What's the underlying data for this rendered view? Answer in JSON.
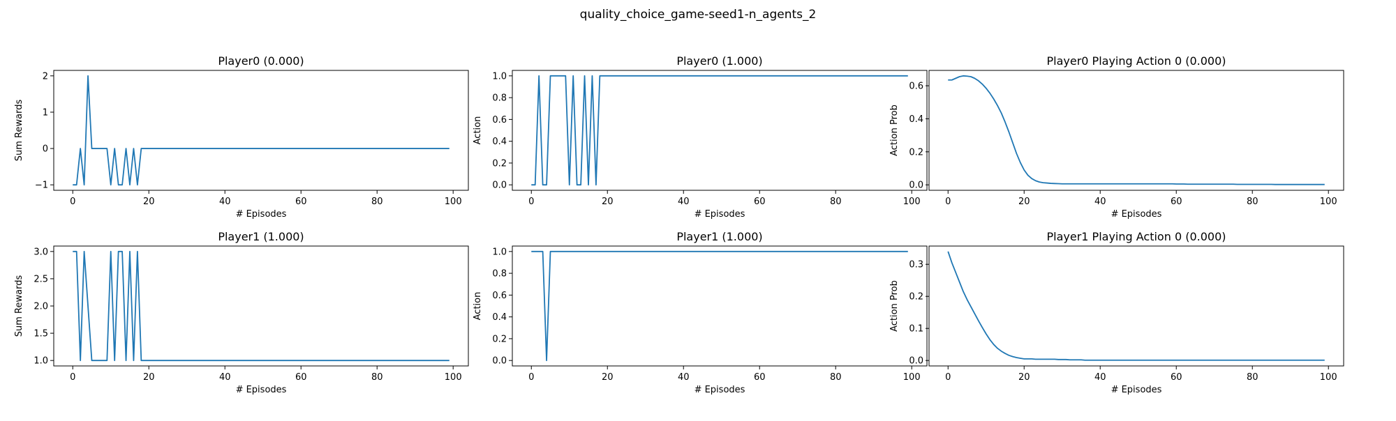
{
  "figure": {
    "suptitle": "quality_choice_game-seed1-n_agents_2",
    "line_color": "#1f77b4"
  },
  "chart_data": [
    {
      "type": "line",
      "title": "Player0 (0.000)",
      "xlabel": "# Episodes",
      "ylabel": "Sum Rewards",
      "xlim": [
        -5,
        104
      ],
      "ylim": [
        -1.15,
        2.15
      ],
      "xticks": [
        0,
        20,
        40,
        60,
        80,
        100
      ],
      "yticks": [
        -1,
        0,
        1,
        2
      ],
      "ytick_labels": [
        "−1",
        "0",
        "1",
        "2"
      ],
      "series": [
        {
          "values": [
            -1,
            -1,
            0,
            -1,
            2,
            0,
            0,
            0,
            0,
            0,
            -1,
            0,
            -1,
            -1,
            0,
            -1,
            0,
            -1,
            0,
            0,
            0,
            0,
            0,
            0,
            0,
            0,
            0,
            0,
            0,
            0,
            0,
            0,
            0,
            0,
            0,
            0,
            0,
            0,
            0,
            0,
            0,
            0,
            0,
            0,
            0,
            0,
            0,
            0,
            0,
            0,
            0,
            0,
            0,
            0,
            0,
            0,
            0,
            0,
            0,
            0,
            0,
            0,
            0,
            0,
            0,
            0,
            0,
            0,
            0,
            0,
            0,
            0,
            0,
            0,
            0,
            0,
            0,
            0,
            0,
            0,
            0,
            0,
            0,
            0,
            0,
            0,
            0,
            0,
            0,
            0,
            0,
            0,
            0,
            0,
            0,
            0,
            0,
            0,
            0,
            0
          ]
        }
      ]
    },
    {
      "type": "line",
      "title": "Player0 (1.000)",
      "xlabel": "# Episodes",
      "ylabel": "Action",
      "xlim": [
        -5,
        104
      ],
      "ylim": [
        -0.05,
        1.05
      ],
      "xticks": [
        0,
        20,
        40,
        60,
        80,
        100
      ],
      "yticks": [
        0,
        0.2,
        0.4,
        0.6,
        0.8,
        1.0
      ],
      "ytick_labels": [
        "0.0",
        "0.2",
        "0.4",
        "0.6",
        "0.8",
        "1.0"
      ],
      "series": [
        {
          "values": [
            0,
            0,
            1,
            0,
            0,
            1,
            1,
            1,
            1,
            1,
            0,
            1,
            0,
            0,
            1,
            0,
            1,
            0,
            1,
            1,
            1,
            1,
            1,
            1,
            1,
            1,
            1,
            1,
            1,
            1,
            1,
            1,
            1,
            1,
            1,
            1,
            1,
            1,
            1,
            1,
            1,
            1,
            1,
            1,
            1,
            1,
            1,
            1,
            1,
            1,
            1,
            1,
            1,
            1,
            1,
            1,
            1,
            1,
            1,
            1,
            1,
            1,
            1,
            1,
            1,
            1,
            1,
            1,
            1,
            1,
            1,
            1,
            1,
            1,
            1,
            1,
            1,
            1,
            1,
            1,
            1,
            1,
            1,
            1,
            1,
            1,
            1,
            1,
            1,
            1,
            1,
            1,
            1,
            1,
            1,
            1,
            1,
            1,
            1,
            1
          ]
        }
      ]
    },
    {
      "type": "line",
      "title": "Player0 Playing Action 0 (0.000)",
      "xlabel": "# Episodes",
      "ylabel": "Action Prob",
      "xlim": [
        -5,
        104
      ],
      "ylim": [
        -0.033,
        0.693
      ],
      "xticks": [
        0,
        20,
        40,
        60,
        80,
        100
      ],
      "yticks": [
        0,
        0.2,
        0.4,
        0.6
      ],
      "ytick_labels": [
        "0.0",
        "0.2",
        "0.4",
        "0.6"
      ],
      "series": [
        {
          "values": [
            0.635,
            0.635,
            0.645,
            0.655,
            0.66,
            0.658,
            0.655,
            0.645,
            0.63,
            0.61,
            0.585,
            0.555,
            0.52,
            0.48,
            0.435,
            0.38,
            0.32,
            0.255,
            0.19,
            0.135,
            0.09,
            0.058,
            0.038,
            0.025,
            0.017,
            0.013,
            0.011,
            0.009,
            0.008,
            0.007,
            0.006,
            0.006,
            0.006,
            0.006,
            0.006,
            0.006,
            0.006,
            0.006,
            0.006,
            0.006,
            0.006,
            0.006,
            0.006,
            0.006,
            0.006,
            0.006,
            0.006,
            0.006,
            0.006,
            0.006,
            0.006,
            0.006,
            0.006,
            0.006,
            0.006,
            0.006,
            0.006,
            0.006,
            0.006,
            0.006,
            0.005,
            0.005,
            0.005,
            0.004,
            0.004,
            0.004,
            0.004,
            0.004,
            0.004,
            0.004,
            0.004,
            0.004,
            0.004,
            0.004,
            0.004,
            0.004,
            0.003,
            0.003,
            0.003,
            0.003,
            0.003,
            0.003,
            0.003,
            0.003,
            0.003,
            0.003,
            0.002,
            0.002,
            0.002,
            0.002,
            0.002,
            0.002,
            0.002,
            0.002,
            0.002,
            0.002,
            0.002,
            0.002,
            0.002,
            0.002
          ]
        }
      ]
    },
    {
      "type": "line",
      "title": "Player1 (1.000)",
      "xlabel": "# Episodes",
      "ylabel": "Sum Rewards",
      "xlim": [
        -5,
        104
      ],
      "ylim": [
        0.9,
        3.1
      ],
      "xticks": [
        0,
        20,
        40,
        60,
        80,
        100
      ],
      "yticks": [
        1.0,
        1.5,
        2.0,
        2.5,
        3.0
      ],
      "ytick_labels": [
        "1.0",
        "1.5",
        "2.0",
        "2.5",
        "3.0"
      ],
      "series": [
        {
          "values": [
            3,
            3,
            1,
            3,
            2,
            1,
            1,
            1,
            1,
            1,
            3,
            1,
            3,
            3,
            1,
            3,
            1,
            3,
            1,
            1,
            1,
            1,
            1,
            1,
            1,
            1,
            1,
            1,
            1,
            1,
            1,
            1,
            1,
            1,
            1,
            1,
            1,
            1,
            1,
            1,
            1,
            1,
            1,
            1,
            1,
            1,
            1,
            1,
            1,
            1,
            1,
            1,
            1,
            1,
            1,
            1,
            1,
            1,
            1,
            1,
            1,
            1,
            1,
            1,
            1,
            1,
            1,
            1,
            1,
            1,
            1,
            1,
            1,
            1,
            1,
            1,
            1,
            1,
            1,
            1,
            1,
            1,
            1,
            1,
            1,
            1,
            1,
            1,
            1,
            1,
            1,
            1,
            1,
            1,
            1,
            1,
            1,
            1,
            1,
            1
          ]
        }
      ]
    },
    {
      "type": "line",
      "title": "Player1 (1.000)",
      "xlabel": "# Episodes",
      "ylabel": "Action",
      "xlim": [
        -5,
        104
      ],
      "ylim": [
        -0.05,
        1.05
      ],
      "xticks": [
        0,
        20,
        40,
        60,
        80,
        100
      ],
      "yticks": [
        0,
        0.2,
        0.4,
        0.6,
        0.8,
        1.0
      ],
      "ytick_labels": [
        "0.0",
        "0.2",
        "0.4",
        "0.6",
        "0.8",
        "1.0"
      ],
      "series": [
        {
          "values": [
            1,
            1,
            1,
            1,
            0,
            1,
            1,
            1,
            1,
            1,
            1,
            1,
            1,
            1,
            1,
            1,
            1,
            1,
            1,
            1,
            1,
            1,
            1,
            1,
            1,
            1,
            1,
            1,
            1,
            1,
            1,
            1,
            1,
            1,
            1,
            1,
            1,
            1,
            1,
            1,
            1,
            1,
            1,
            1,
            1,
            1,
            1,
            1,
            1,
            1,
            1,
            1,
            1,
            1,
            1,
            1,
            1,
            1,
            1,
            1,
            1,
            1,
            1,
            1,
            1,
            1,
            1,
            1,
            1,
            1,
            1,
            1,
            1,
            1,
            1,
            1,
            1,
            1,
            1,
            1,
            1,
            1,
            1,
            1,
            1,
            1,
            1,
            1,
            1,
            1,
            1,
            1,
            1,
            1,
            1,
            1,
            1,
            1,
            1,
            1
          ]
        }
      ]
    },
    {
      "type": "line",
      "title": "Player1 Playing Action 0 (0.000)",
      "xlabel": "# Episodes",
      "ylabel": "Action Prob",
      "xlim": [
        -5,
        104
      ],
      "ylim": [
        -0.017,
        0.357
      ],
      "xticks": [
        0,
        20,
        40,
        60,
        80,
        100
      ],
      "yticks": [
        0,
        0.1,
        0.2,
        0.3
      ],
      "ytick_labels": [
        "0.0",
        "0.1",
        "0.2",
        "0.3"
      ],
      "series": [
        {
          "values": [
            0.34,
            0.305,
            0.275,
            0.245,
            0.215,
            0.19,
            0.168,
            0.146,
            0.124,
            0.103,
            0.083,
            0.065,
            0.05,
            0.038,
            0.029,
            0.022,
            0.016,
            0.012,
            0.009,
            0.007,
            0.005,
            0.005,
            0.005,
            0.004,
            0.004,
            0.004,
            0.004,
            0.004,
            0.004,
            0.003,
            0.003,
            0.003,
            0.002,
            0.002,
            0.002,
            0.002,
            0.001,
            0.001,
            0.001,
            0.001,
            0.001,
            0.001,
            0.001,
            0.001,
            0.001,
            0.001,
            0.001,
            0.001,
            0.001,
            0.001,
            0.001,
            0.001,
            0.001,
            0.001,
            0.001,
            0.001,
            0.001,
            0.001,
            0.001,
            0.001,
            0.001,
            0.001,
            0.001,
            0.001,
            0.001,
            0.001,
            0.001,
            0.001,
            0.001,
            0.001,
            0.001,
            0.001,
            0.001,
            0.001,
            0.001,
            0.001,
            0.001,
            0.001,
            0.001,
            0.001,
            0.001,
            0.001,
            0.001,
            0.001,
            0.001,
            0.001,
            0.001,
            0.001,
            0.001,
            0.001,
            0.001,
            0.001,
            0.001,
            0.001,
            0.001,
            0.001,
            0.001,
            0.001,
            0.001,
            0.001
          ]
        }
      ]
    }
  ]
}
